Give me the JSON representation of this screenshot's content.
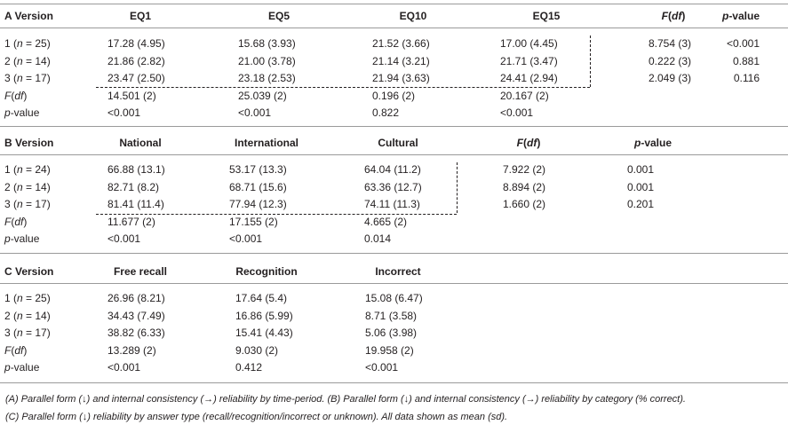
{
  "sectionA": {
    "headers": [
      "A Version",
      "EQ1",
      "EQ5",
      "EQ10",
      "EQ15",
      "F(df)",
      "p-value"
    ],
    "rows": [
      [
        "1 (n = 25)",
        "17.28 (4.95)",
        "15.68 (3.93)",
        "21.52 (3.66)",
        "17.00 (4.45)",
        "8.754 (3)",
        "<0.001"
      ],
      [
        "2 (n = 14)",
        "21.86 (2.82)",
        "21.00 (3.78)",
        "21.14 (3.21)",
        "21.71 (3.47)",
        "0.222 (3)",
        "0.881"
      ],
      [
        "3 (n = 17)",
        "23.47 (2.50)",
        "23.18 (2.53)",
        "21.94 (3.63)",
        "24.41 (2.94)",
        "2.049 (3)",
        "0.116"
      ],
      [
        "F(df)",
        "14.501 (2)",
        "25.039 (2)",
        "0.196 (2)",
        "20.167 (2)",
        "",
        ""
      ],
      [
        "p-value",
        "<0.001",
        "<0.001",
        "0.822",
        "<0.001",
        "",
        ""
      ]
    ]
  },
  "sectionB": {
    "headers": [
      "B Version",
      "National",
      "International",
      "Cultural",
      "F(df)",
      "p-value"
    ],
    "rows": [
      [
        "1 (n = 24)",
        "66.88 (13.1)",
        "53.17 (13.3)",
        "64.04 (11.2)",
        "7.922 (2)",
        "0.001"
      ],
      [
        "2 (n = 14)",
        "82.71 (8.2)",
        "68.71 (15.6)",
        "63.36 (12.7)",
        "8.894 (2)",
        "0.001"
      ],
      [
        "3 (n = 17)",
        "81.41 (11.4)",
        "77.94 (12.3)",
        "74.11 (11.3)",
        "1.660 (2)",
        "0.201"
      ],
      [
        "F(df)",
        "11.677 (2)",
        "17.155 (2)",
        "4.665 (2)",
        "",
        ""
      ],
      [
        "p-value",
        "<0.001",
        "<0.001",
        "0.014",
        "",
        ""
      ]
    ]
  },
  "sectionC": {
    "headers": [
      "C Version",
      "Free recall",
      "Recognition",
      "Incorrect"
    ],
    "rows": [
      [
        "1 (n = 25)",
        "26.96 (8.21)",
        "17.64 (5.4)",
        "15.08 (6.47)"
      ],
      [
        "2 (n = 14)",
        "34.43 (7.49)",
        "16.86 (5.99)",
        "8.71 (3.58)"
      ],
      [
        "3 (n = 17)",
        "38.82 (6.33)",
        "15.41 (4.43)",
        "5.06 (3.98)"
      ],
      [
        "F(df)",
        "13.289 (2)",
        "9.030 (2)",
        "19.958 (2)"
      ],
      [
        "p-value",
        "<0.001",
        "0.412",
        "<0.001"
      ]
    ]
  },
  "notes": [
    "(A) Parallel form (↓) and internal consistency (→) reliability by time-period. (B) Parallel form (↓) and internal consistency (→) reliability by category (% correct).",
    "(C) Parallel form (↓) reliability by answer type (recall/recognition/incorrect or unknown). All data shown as mean (sd)."
  ]
}
